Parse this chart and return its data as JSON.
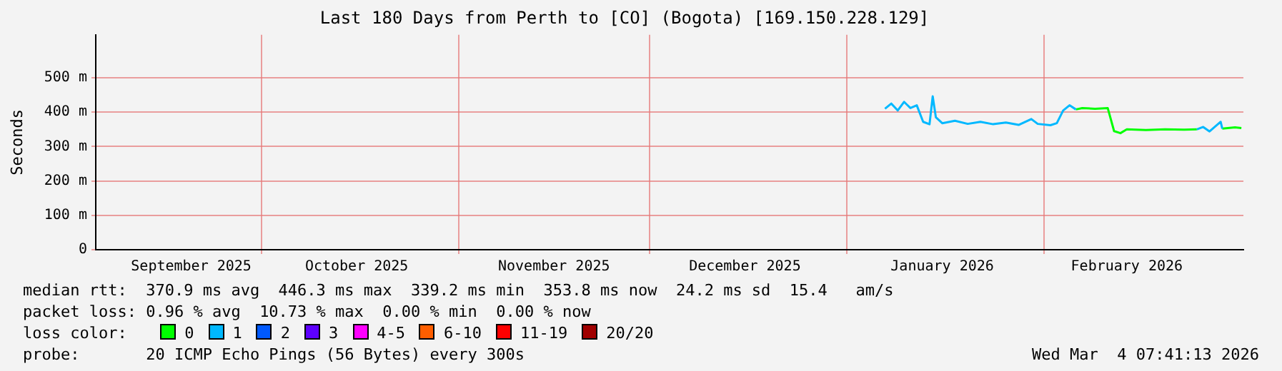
{
  "chart_data": {
    "type": "line",
    "title": "Last 180 Days from Perth to [CO] (Bogota) [169.150.228.129]",
    "ylabel": "Seconds",
    "xlim": [
      "2025-09-05",
      "2026-03-04T07:41"
    ],
    "xticks": [
      {
        "value": "2025-09-20",
        "label": "September 2025"
      },
      {
        "value": "2025-10-01",
        "label": null
      },
      {
        "value": "2025-10-16",
        "label": "October 2025"
      },
      {
        "value": "2025-11-01",
        "label": null
      },
      {
        "value": "2025-11-16",
        "label": "November 2025"
      },
      {
        "value": "2025-12-01",
        "label": null
      },
      {
        "value": "2025-12-16",
        "label": "December 2025"
      },
      {
        "value": "2026-01-01",
        "label": null
      },
      {
        "value": "2026-01-16",
        "label": "January 2026"
      },
      {
        "value": "2026-02-01",
        "label": null
      },
      {
        "value": "2026-02-14",
        "label": "February 2026"
      }
    ],
    "ylim": [
      0,
      625
    ],
    "yticks": [
      0,
      {
        "value": 100,
        "label": "100 m"
      },
      {
        "value": 200,
        "label": "200 m"
      },
      {
        "value": 300,
        "label": "300 m"
      },
      {
        "value": 400,
        "label": "400 m"
      },
      {
        "value": 500,
        "label": "500 m"
      }
    ],
    "grid": true,
    "legend": false,
    "marker": "none",
    "line_style": "solid",
    "series": [
      {
        "color": "#00ff00",
        "x": [
          "2026-02-06",
          "2026-02-07",
          "2026-02-09",
          "2026-02-11",
          "2026-02-12",
          "2026-02-13",
          "2026-02-14",
          "2026-02-17",
          "2026-02-20",
          "2026-02-23",
          "2026-02-25",
          "2026-02-26T12:00",
          "2026-03-01",
          "2026-03-03",
          "2026-03-04"
        ],
        "values": [
          408,
          412,
          410,
          412,
          345,
          339,
          350,
          348,
          350,
          349,
          350,
          null,
          352,
          356,
          354
        ]
      },
      {
        "color": "#00b8ff",
        "x": [
          "2026-01-07",
          "2026-01-08",
          "2026-01-09",
          "2026-01-10",
          "2026-01-11",
          "2026-01-12",
          "2026-01-13",
          "2026-01-14",
          "2026-01-14T12:00",
          "2026-01-15",
          "2026-01-16",
          "2026-01-18",
          "2026-01-20",
          "2026-01-22",
          "2026-01-24",
          "2026-01-26",
          "2026-01-28",
          "2026-01-30",
          "2026-01-31",
          "2026-02-02",
          "2026-02-03",
          "2026-02-04",
          "2026-02-05",
          "2026-02-06",
          "2026-02-07",
          "2026-02-25",
          "2026-02-26",
          "2026-02-27",
          "2026-02-28T18:00",
          "2026-03-01"
        ],
        "values": [
          410,
          425,
          405,
          430,
          412,
          420,
          372,
          365,
          446,
          385,
          368,
          375,
          366,
          372,
          365,
          370,
          363,
          380,
          366,
          362,
          368,
          405,
          420,
          408,
          null,
          350,
          357,
          344,
          372,
          352
        ]
      }
    ],
    "annotations": [
      "median rtt:  370.9 ms avg  446.3 ms max  339.2 ms min  353.8 ms now  24.2 ms sd  15.4   am/s",
      "packet loss: 0.96 % avg  10.73 % max  0.00 % min  0.00 % now",
      "loss color:",
      "0",
      "1",
      "2",
      "3",
      "4-5",
      "6-10",
      "11-19",
      "20/20",
      "probe:       20 ICMP Echo Pings (56 Bytes) every 300s",
      "Wed Mar  4 07:41:13 2026"
    ]
  }
}
